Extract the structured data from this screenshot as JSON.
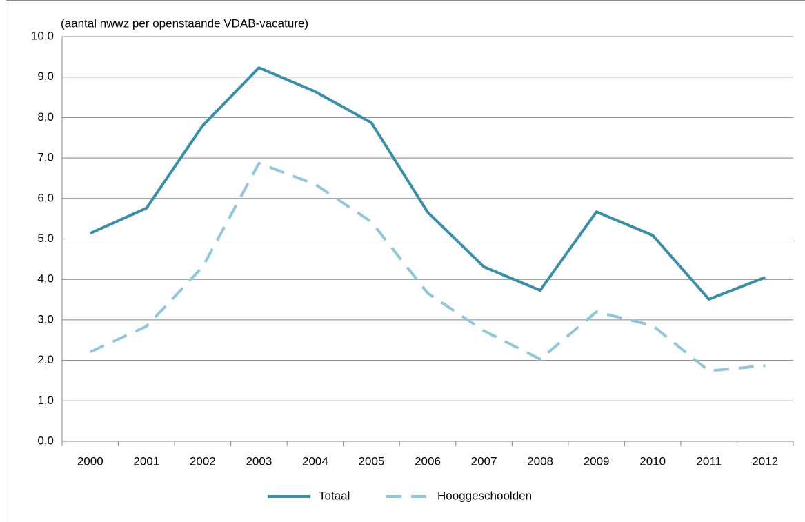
{
  "chart_data": {
    "type": "line",
    "title": "(aantal nwwz per openstaande VDAB-vacature)",
    "categories": [
      "2000",
      "2001",
      "2002",
      "2003",
      "2004",
      "2005",
      "2006",
      "2007",
      "2008",
      "2009",
      "2010",
      "2011",
      "2012"
    ],
    "series": [
      {
        "name": "Totaal",
        "color": "#3b8ea5",
        "dash": false,
        "values": [
          5.14,
          5.76,
          7.8,
          9.23,
          8.64,
          7.87,
          5.66,
          4.31,
          3.73,
          5.67,
          5.09,
          3.51,
          4.05
        ]
      },
      {
        "name": "Hooggeschoolden",
        "color": "#93c6d9",
        "dash": true,
        "values": [
          2.21,
          2.84,
          4.31,
          6.87,
          6.35,
          5.42,
          3.66,
          2.73,
          2.03,
          3.2,
          2.86,
          1.74,
          1.87
        ]
      }
    ],
    "ylim": [
      0,
      10
    ],
    "yticks": [
      {
        "value": 0,
        "label": "0,0"
      },
      {
        "value": 1,
        "label": "1,0"
      },
      {
        "value": 2,
        "label": "2,0"
      },
      {
        "value": 3,
        "label": "3,0"
      },
      {
        "value": 4,
        "label": "4,0"
      },
      {
        "value": 5,
        "label": "5,0"
      },
      {
        "value": 6,
        "label": "6,0"
      },
      {
        "value": 7,
        "label": "7,0"
      },
      {
        "value": 8,
        "label": "8,0"
      },
      {
        "value": 9,
        "label": "9,0"
      },
      {
        "value": 10,
        "label": "10,0"
      }
    ],
    "grid": true,
    "legend": "bottom"
  }
}
